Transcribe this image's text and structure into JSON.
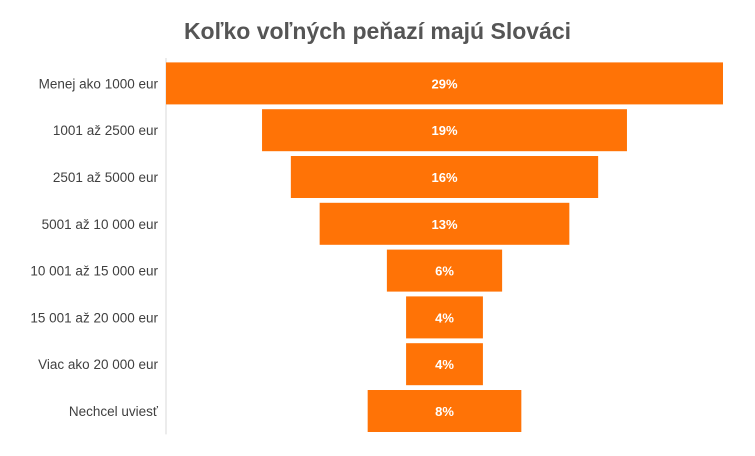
{
  "chart_data": {
    "type": "bar",
    "subtype": "funnel",
    "title": "Koľko voľných peňazí majú Slováci",
    "categories": [
      "Menej ako 1000 eur",
      "1001 až 2500 eur",
      "2501 až 5000 eur",
      "5001 až 10 000 eur",
      "10 001 až 15 000 eur",
      "15 001 až 20 000 eur",
      "Viac ako 20 000 eur",
      "Nechcel uviesť"
    ],
    "values": [
      29,
      19,
      16,
      13,
      6,
      4,
      4,
      8
    ],
    "value_labels": [
      "29%",
      "19%",
      "16%",
      "13%",
      "6%",
      "4%",
      "4%",
      "8%"
    ],
    "unit": "%",
    "xlabel": "",
    "ylabel": "",
    "xlim": [
      0,
      29
    ],
    "grid": false,
    "bar_color": "#FF7306"
  }
}
